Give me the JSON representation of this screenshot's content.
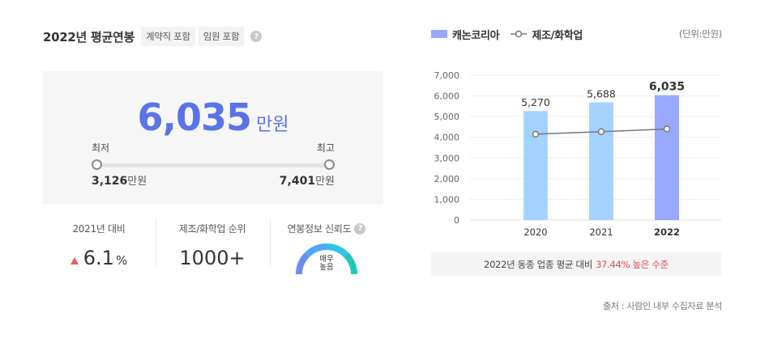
{
  "header": {
    "title": "2022년 평균연봉",
    "chip_contract": "계약직 포함",
    "chip_executive": "임원 포함",
    "help": "?"
  },
  "salary": {
    "value": "6,035",
    "unit": "만원",
    "min_label": "최저",
    "max_label": "최고",
    "min_value": "3,126",
    "max_value": "7,401",
    "range_unit": "만원"
  },
  "stats": {
    "yoy_label": "2021년 대비",
    "yoy_value": "6.1",
    "yoy_unit": "%",
    "rank_label": "제조/화학업 순위",
    "rank_value": "1000+",
    "reliability_label": "연봉정보 신뢰도",
    "reliability_help": "?",
    "reliability_line1": "매우",
    "reliability_line2": "높음"
  },
  "legend": {
    "company": "캐논코리아",
    "industry": "제조/화학업",
    "unit_note": "(단위:만원)"
  },
  "chart_data": {
    "type": "bar",
    "categories": [
      "2020",
      "2021",
      "2022"
    ],
    "series": [
      {
        "name": "캐논코리아",
        "type": "bar",
        "values": [
          5270,
          5688,
          6035
        ],
        "labels": [
          "5,270",
          "5,688",
          "6,035"
        ]
      },
      {
        "name": "제조/화학업",
        "type": "line",
        "values": [
          4150,
          4270,
          4400
        ]
      }
    ],
    "yticks": [
      "0",
      "1,000",
      "2,000",
      "3,000",
      "4,000",
      "5,000",
      "6,000",
      "7,000"
    ],
    "ylim": [
      0,
      7000
    ],
    "colors": {
      "bar": "#a5d3ff",
      "bar_highlight": "#98a8ff",
      "line": "#777777"
    }
  },
  "comparison": {
    "text": "2022년 동종 업종 평균 대비",
    "highlight": "37.44% 높은 수준"
  },
  "footer": {
    "source": "출처 : 사람인 내부 수집자료 분석"
  }
}
